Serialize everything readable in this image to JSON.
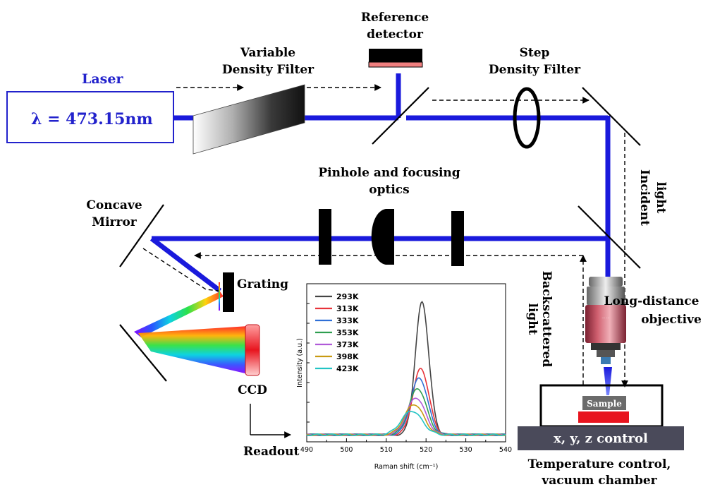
{
  "labels": {
    "laser": "Laser",
    "wavelength": "λ = 473.15nm",
    "variable_filter_1": "Variable",
    "variable_filter_2": "Density Filter",
    "reference_1": "Reference",
    "reference_2": "detector",
    "step_filter_1": "Step",
    "step_filter_2": "Density Filter",
    "pinhole_1": "Pinhole and focusing",
    "pinhole_2": "optics",
    "concave_1": "Concave",
    "concave_2": "Mirror",
    "grating": "Grating",
    "ccd": "CCD",
    "readout": "Readout",
    "incident_1": "Incident",
    "incident_2": "light",
    "backscattered_1": "Backscattered",
    "backscattered_2": "light",
    "objective_1": "Long-distance",
    "objective_2": "objective",
    "sample": "Sample",
    "stage": "x, y, z control",
    "chamber_1": "Temperature control,",
    "chamber_2": "vacuum chamber"
  },
  "colors": {
    "beam": "#1a1adc",
    "laser_box": "#2222cc",
    "reference_pad": "#f08080",
    "sample_red": "#e8141e",
    "stage": "#4a4a5a"
  },
  "chart_data": {
    "type": "line",
    "xlabel": "Raman shift (cm⁻¹)",
    "ylabel": "Intensity (a.u.)",
    "xlim": [
      490,
      540
    ],
    "xticks": [
      490,
      500,
      510,
      520,
      530,
      540
    ],
    "series": [
      {
        "name": "293K",
        "color": "#444444",
        "center": 519.0,
        "amp": 1.0,
        "width": 1.7
      },
      {
        "name": "313K",
        "color": "#e8333a",
        "center": 518.7,
        "amp": 0.5,
        "width": 2.0
      },
      {
        "name": "333K",
        "color": "#2f6fd6",
        "center": 518.3,
        "amp": 0.43,
        "width": 2.1
      },
      {
        "name": "353K",
        "color": "#2e9e4f",
        "center": 517.9,
        "amp": 0.35,
        "width": 2.2
      },
      {
        "name": "373K",
        "color": "#b05ad8",
        "center": 517.5,
        "amp": 0.28,
        "width": 2.3
      },
      {
        "name": "398K",
        "color": "#c89a12",
        "center": 517.0,
        "amp": 0.23,
        "width": 2.4
      },
      {
        "name": "423K",
        "color": "#22c4c4",
        "center": 516.4,
        "amp": 0.18,
        "width": 2.6
      }
    ],
    "grid": false,
    "legend": "top-left"
  }
}
